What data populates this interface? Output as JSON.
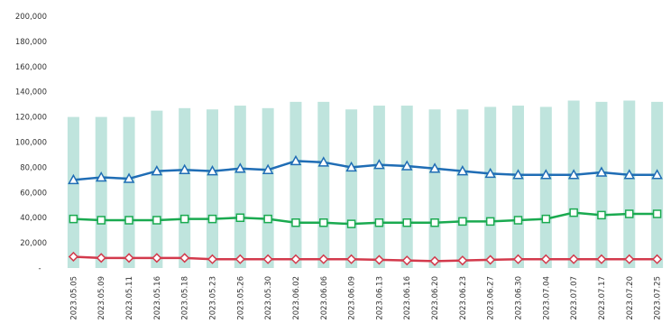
{
  "chart_data": {
    "type": "bar+line",
    "categories": [
      "2023.05.05",
      "2023.05.09",
      "2023.05.11",
      "2023.05.16",
      "2023.05.18",
      "2023.05.23",
      "2023.05.26",
      "2023.05.30",
      "2023.06.02",
      "2023.06.06",
      "2023.06.09",
      "2023.06.13",
      "2023.06.16",
      "2023.06.20",
      "2023.06.23",
      "2023.06.27",
      "2023.06.30",
      "2023.07.04",
      "2023.07.07",
      "2023.07.17",
      "2023.07.20",
      "2023.07.25"
    ],
    "y_ticks": [
      "-",
      "20,000",
      "40,000",
      "60,000",
      "80,000",
      "100,000",
      "120,000",
      "140,000",
      "160,000",
      "180,000",
      "200,000"
    ],
    "ylim": [
      0,
      200000
    ],
    "grid": false,
    "series": [
      {
        "kind": "bar",
        "color": "#bfe4dd",
        "values": [
          120000,
          120000,
          120000,
          125000,
          127000,
          126000,
          129000,
          127000,
          132000,
          132000,
          126000,
          129000,
          129000,
          126000,
          126000,
          128000,
          129000,
          128000,
          133000,
          132000,
          133000,
          132000
        ]
      },
      {
        "kind": "line",
        "color": "#1f6db5",
        "marker": "triangle",
        "values": [
          70000,
          72000,
          71000,
          77000,
          78000,
          77000,
          79000,
          78000,
          85000,
          84000,
          80000,
          82000,
          81000,
          79000,
          77000,
          75000,
          74000,
          74000,
          74000,
          76000,
          74000,
          74000
        ]
      },
      {
        "kind": "line",
        "color": "#1aaa50",
        "marker": "square",
        "values": [
          39000,
          38000,
          38000,
          38000,
          39000,
          39000,
          40000,
          39000,
          36000,
          36000,
          35000,
          36000,
          36000,
          36000,
          37000,
          37000,
          38000,
          39000,
          44000,
          42000,
          43000,
          43000
        ]
      },
      {
        "kind": "line",
        "color": "#d33a4c",
        "marker": "diamond",
        "values": [
          9000,
          8000,
          8000,
          8000,
          8000,
          7000,
          7000,
          7000,
          7000,
          7000,
          7000,
          6500,
          6000,
          5500,
          6000,
          6500,
          7000,
          7000,
          7000,
          7000,
          7000,
          7000
        ]
      }
    ]
  }
}
